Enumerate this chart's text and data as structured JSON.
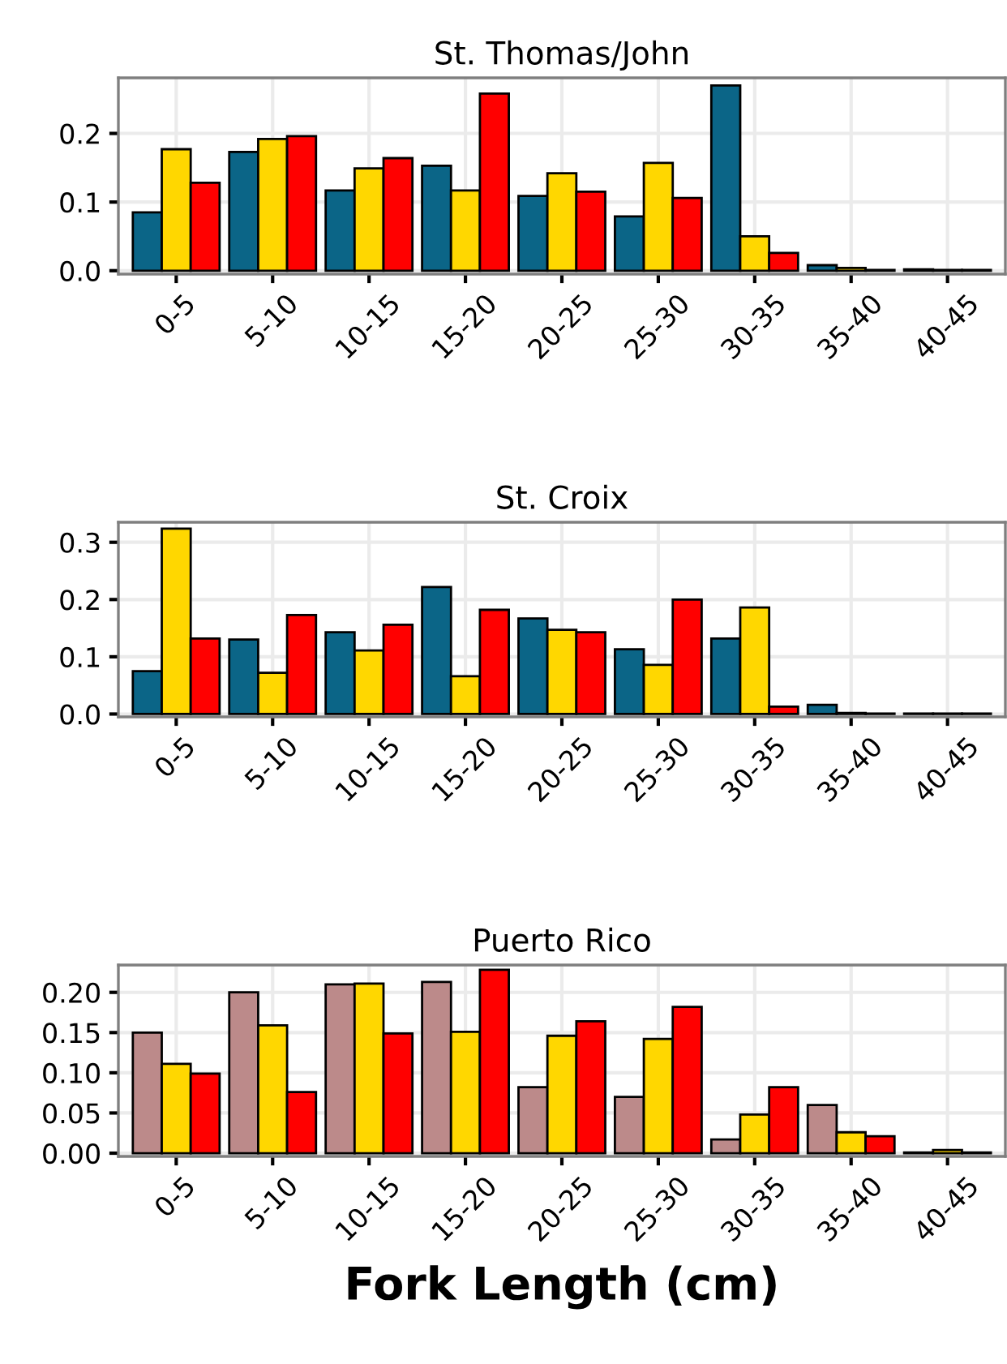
{
  "chart_data": [
    {
      "type": "bar",
      "title": "St. Thomas/John",
      "categories": [
        "0-5",
        "5-10",
        "10-15",
        "15-20",
        "20-25",
        "25-30",
        "30-35",
        "35-40",
        "40-45"
      ],
      "ylim": [
        -0.005,
        0.281
      ],
      "yticks": [
        {
          "value": 0,
          "label": "0.0"
        },
        0.1,
        0.2
      ],
      "grid": true,
      "legend": false,
      "series": [
        {
          "color": "#0b6587",
          "values": [
            0.085,
            0.173,
            0.117,
            0.153,
            0.109,
            0.079,
            0.27,
            0.008,
            0.002
          ]
        },
        {
          "color": "#ffd700",
          "values": [
            0.177,
            0.192,
            0.149,
            0.117,
            0.142,
            0.157,
            0.05,
            0.004,
            0.001
          ]
        },
        {
          "color": "#ff0000",
          "values": [
            0.128,
            0.196,
            0.164,
            0.258,
            0.115,
            0.106,
            0.026,
            0.001,
            0.001
          ]
        }
      ]
    },
    {
      "type": "bar",
      "title": "St. Croix",
      "categories": [
        "0-5",
        "5-10",
        "10-15",
        "15-20",
        "20-25",
        "25-30",
        "30-35",
        "35-40",
        "40-45"
      ],
      "ylim": [
        -0.005,
        0.335
      ],
      "yticks": [
        {
          "value": 0,
          "label": "0.0"
        },
        0.1,
        0.2,
        0.3
      ],
      "grid": true,
      "legend": false,
      "series": [
        {
          "color": "#0b6587",
          "values": [
            0.075,
            0.13,
            0.143,
            0.222,
            0.167,
            0.113,
            0.132,
            0.016,
            0.001
          ]
        },
        {
          "color": "#ffd700",
          "values": [
            0.324,
            0.072,
            0.111,
            0.066,
            0.147,
            0.086,
            0.186,
            0.002,
            0.001
          ]
        },
        {
          "color": "#ff0000",
          "values": [
            0.132,
            0.173,
            0.156,
            0.182,
            0.143,
            0.2,
            0.013,
            0.001,
            0.001
          ]
        }
      ]
    },
    {
      "type": "bar",
      "title": "Puerto Rico",
      "xlabel": "Fork Length (cm)",
      "categories": [
        "0-5",
        "5-10",
        "10-15",
        "15-20",
        "20-25",
        "25-30",
        "30-35",
        "35-40",
        "40-45"
      ],
      "ylim": [
        -0.004,
        0.234
      ],
      "yticks": [
        {
          "value": 0,
          "label": "0.00"
        },
        {
          "value": 0.05,
          "label": "0.05"
        },
        {
          "value": 0.1,
          "label": "0.10"
        },
        {
          "value": 0.15,
          "label": "0.15"
        },
        {
          "value": 0.2,
          "label": "0.20"
        }
      ],
      "grid": true,
      "legend": false,
      "series": [
        {
          "color": "#bc8a8a",
          "values": [
            0.15,
            0.2,
            0.21,
            0.213,
            0.082,
            0.07,
            0.017,
            0.06,
            0.001
          ]
        },
        {
          "color": "#ffd700",
          "values": [
            0.111,
            0.159,
            0.211,
            0.151,
            0.146,
            0.142,
            0.048,
            0.026,
            0.004
          ]
        },
        {
          "color": "#ff0000",
          "values": [
            0.099,
            0.076,
            0.149,
            0.228,
            0.164,
            0.182,
            0.082,
            0.021,
            0.001
          ]
        }
      ]
    }
  ]
}
